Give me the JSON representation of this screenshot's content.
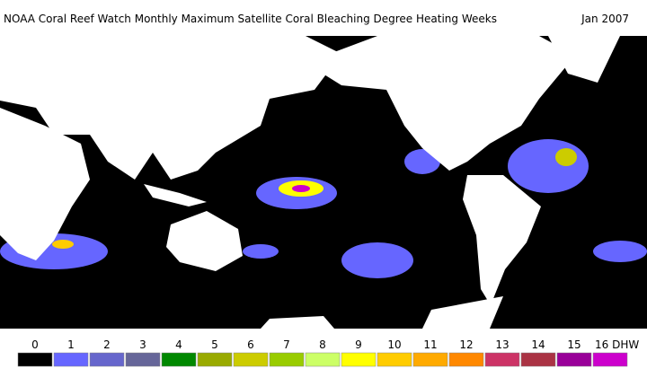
{
  "header": {
    "title": "NOAA Coral Reef Watch Monthly Maximum Satellite Coral Bleaching Degree Heating Weeks",
    "date": "Jan 2007"
  },
  "legend": {
    "items": [
      {
        "label": "0",
        "color": "#000000"
      },
      {
        "label": "1",
        "color": "#6666ff"
      },
      {
        "label": "2",
        "color": "#6666cc"
      },
      {
        "label": "3",
        "color": "#666699"
      },
      {
        "label": "4",
        "color": "#008800"
      },
      {
        "label": "5",
        "color": "#99aa00"
      },
      {
        "label": "6",
        "color": "#cccc00"
      },
      {
        "label": "7",
        "color": "#99cc00"
      },
      {
        "label": "8",
        "color": "#ccff66"
      },
      {
        "label": "9",
        "color": "#ffff00"
      },
      {
        "label": "10",
        "color": "#ffcc00"
      },
      {
        "label": "11",
        "color": "#ffaa00"
      },
      {
        "label": "12",
        "color": "#ff8800"
      },
      {
        "label": "13",
        "color": "#cc3366"
      },
      {
        "label": "14",
        "color": "#aa3344"
      },
      {
        "label": "15",
        "color": "#990099"
      },
      {
        "label": "16 DHW",
        "color": "#cc00cc"
      }
    ]
  }
}
